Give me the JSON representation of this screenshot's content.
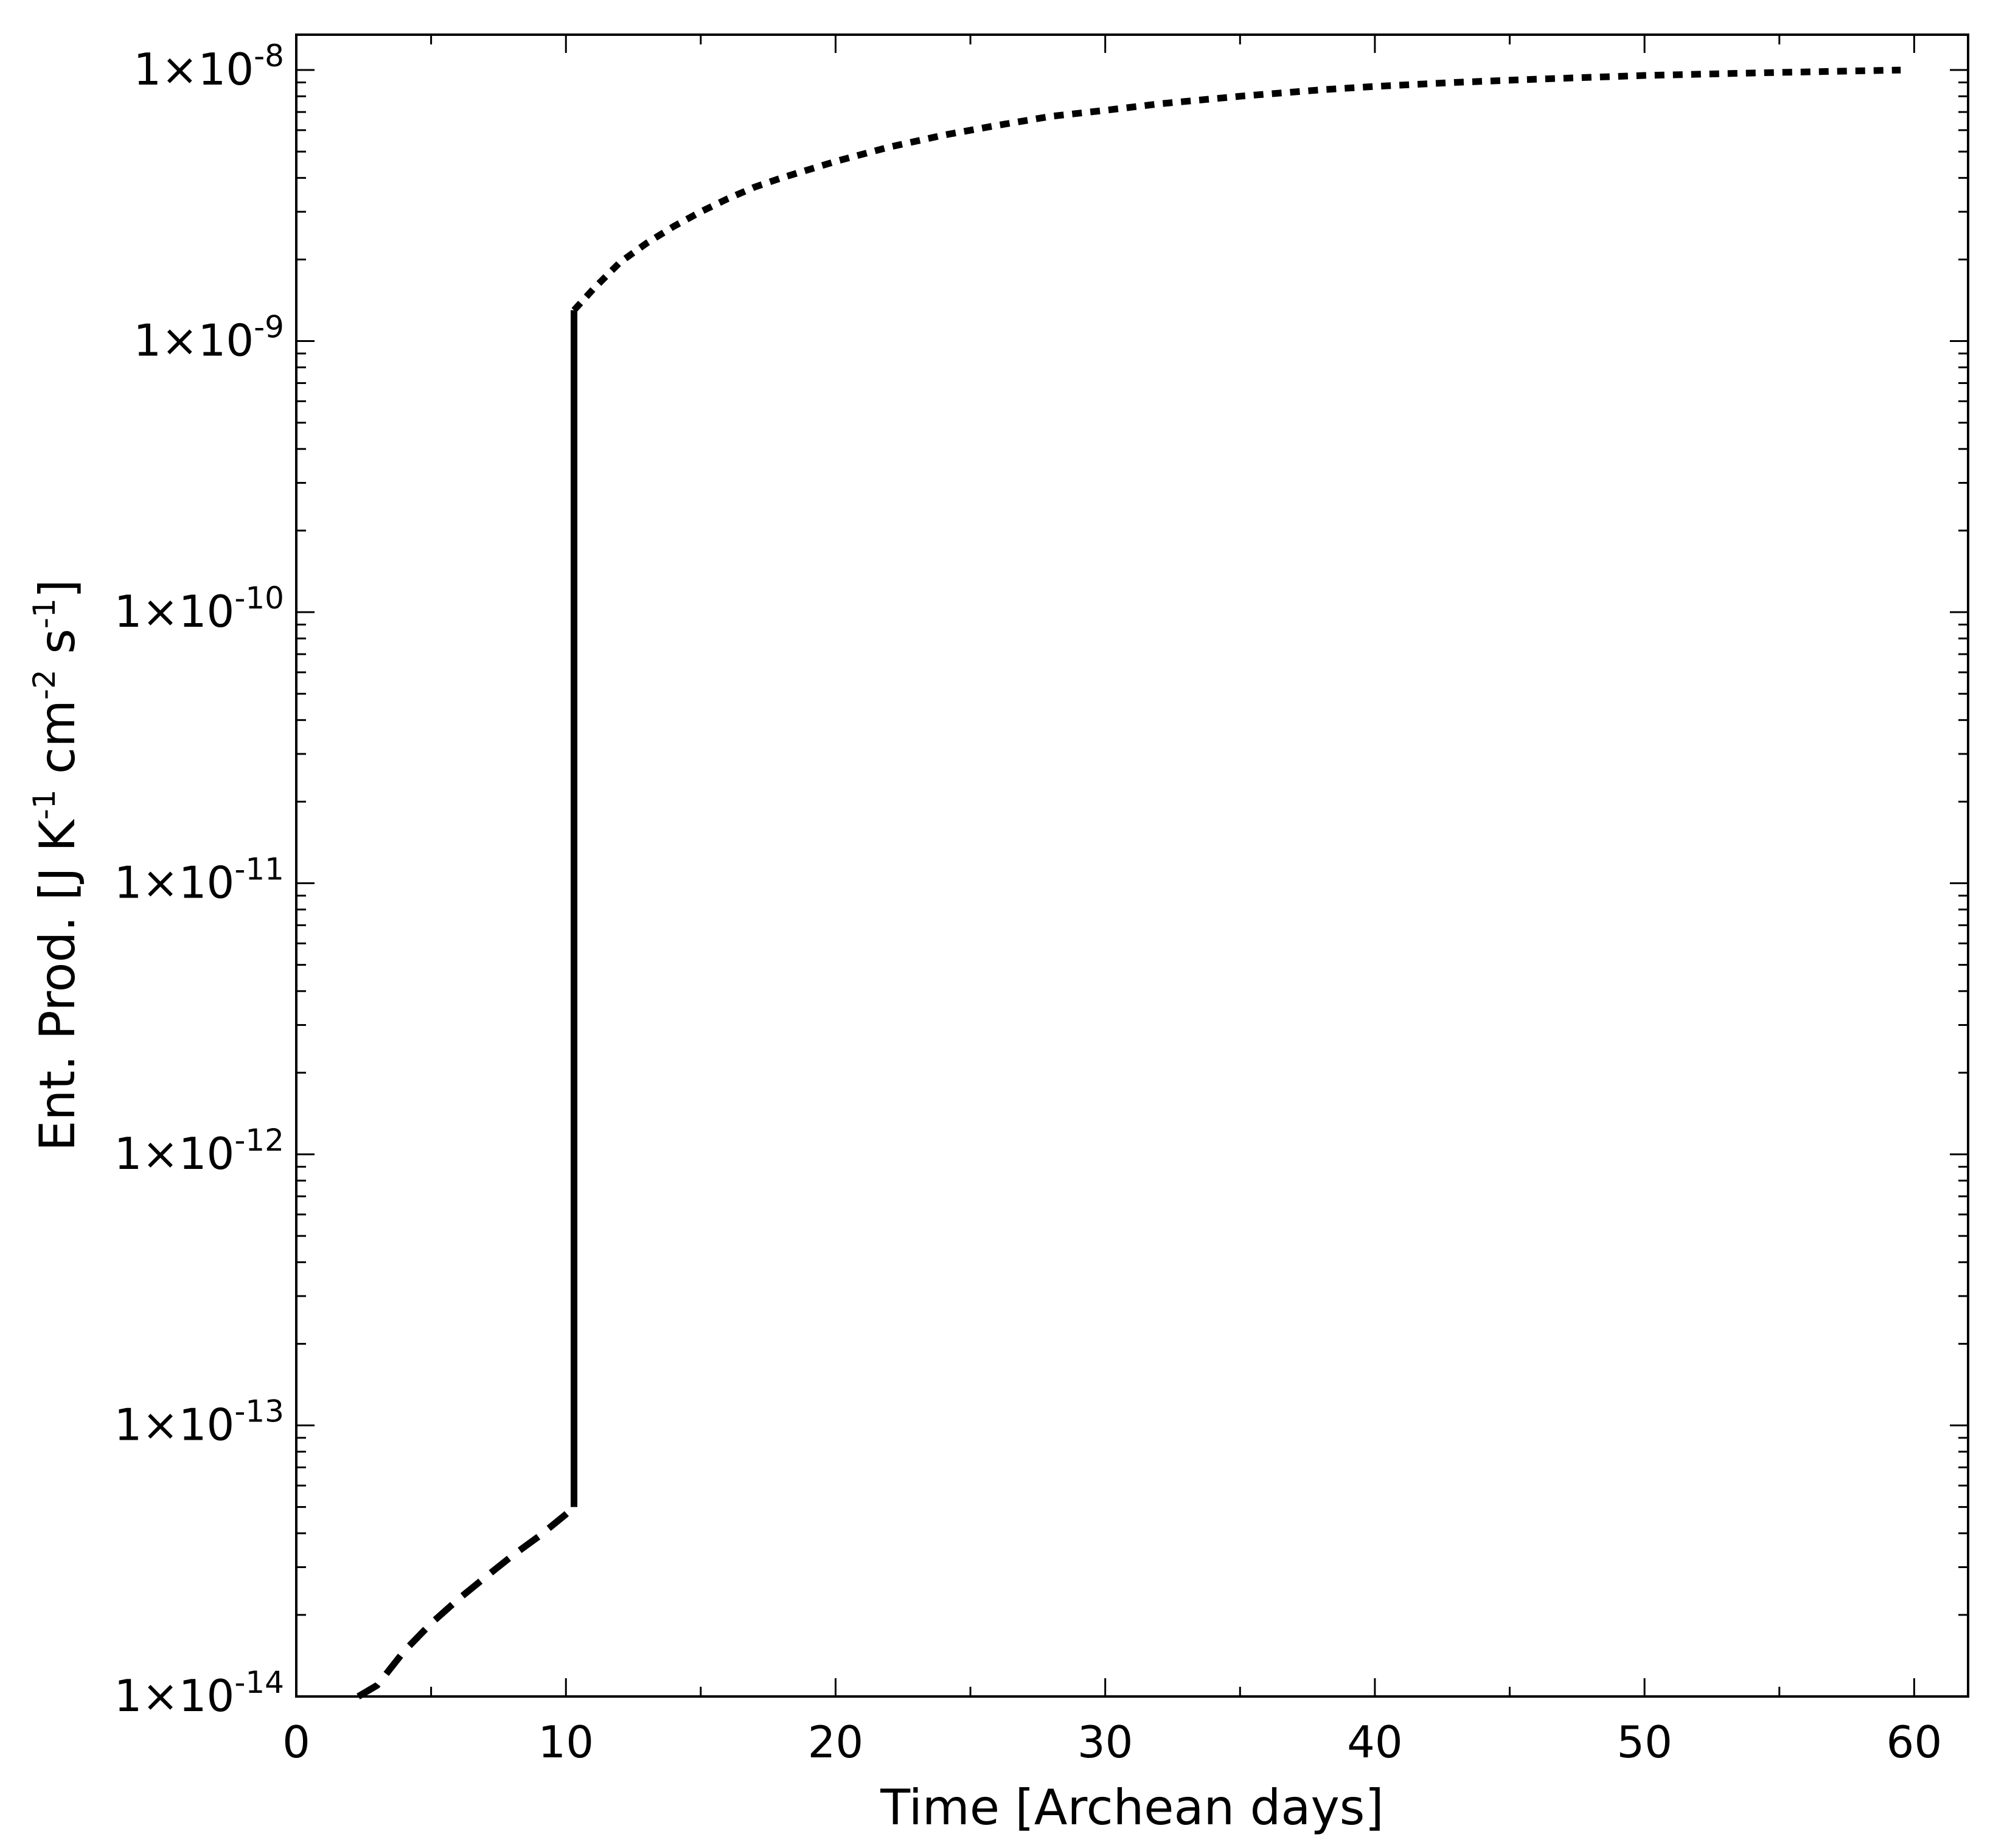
{
  "chart_data": {
    "type": "line",
    "title": "",
    "xlabel": "Time [Archean days]",
    "ylabel": {
      "parts": [
        {
          "text": "Ent. Prod. [J K"
        },
        {
          "text": "-1",
          "sup": true
        },
        {
          "text": " cm"
        },
        {
          "text": "-2",
          "sup": true
        },
        {
          "text": " s"
        },
        {
          "text": "-1",
          "sup": true
        },
        {
          "text": "]"
        }
      ]
    },
    "xlim": [
      0,
      62
    ],
    "ylim": [
      1e-14,
      1.35e-08
    ],
    "yscale": "log",
    "grid": false,
    "x_ticks": [
      {
        "value": 0,
        "label": "0"
      },
      {
        "value": 10,
        "label": "10"
      },
      {
        "value": 20,
        "label": "20"
      },
      {
        "value": 30,
        "label": "30"
      },
      {
        "value": 40,
        "label": "40"
      },
      {
        "value": 50,
        "label": "50"
      },
      {
        "value": 60,
        "label": "60"
      }
    ],
    "y_ticks": [
      {
        "value": 1e-14,
        "base": "1×10",
        "exp": "-14"
      },
      {
        "value": 1e-13,
        "base": "1×10",
        "exp": "-13"
      },
      {
        "value": 1e-12,
        "base": "1×10",
        "exp": "-12"
      },
      {
        "value": 1e-11,
        "base": "1×10",
        "exp": "-11"
      },
      {
        "value": 1e-10,
        "base": "1×10",
        "exp": "-10"
      },
      {
        "value": 1e-09,
        "base": "1×10",
        "exp": "-9"
      },
      {
        "value": 1e-08,
        "base": "1×10",
        "exp": "-8"
      }
    ],
    "series": [
      {
        "style": "dashed",
        "color": "#000000",
        "x": [
          2.3,
          3.0,
          4.0,
          5.0,
          6.0,
          7.0,
          8.0,
          9.0,
          10.0,
          10.3
        ],
        "y": [
          1e-14,
          1.1e-14,
          1.47e-14,
          1.86e-14,
          2.28e-14,
          2.75e-14,
          3.3e-14,
          3.9e-14,
          4.7e-14,
          5e-14
        ]
      },
      {
        "style": "solid",
        "color": "#000000",
        "x": [
          10.3,
          10.3
        ],
        "y": [
          5e-14,
          1.3e-09
        ]
      },
      {
        "style": "dotted",
        "color": "#000000",
        "x": [
          10.3,
          11,
          12,
          13,
          14,
          15,
          16,
          17,
          18,
          20,
          22,
          24,
          26,
          28,
          30,
          32,
          35,
          38,
          40,
          43,
          46,
          50,
          55,
          59.5
        ],
        "y": [
          1.3e-09,
          1.55e-09,
          1.95e-09,
          2.3e-09,
          2.65e-09,
          3e-09,
          3.35e-09,
          3.7e-09,
          4e-09,
          4.6e-09,
          5.2e-09,
          5.75e-09,
          6.25e-09,
          6.75e-09,
          7.1e-09,
          7.5e-09,
          8e-09,
          8.45e-09,
          8.7e-09,
          9e-09,
          9.25e-09,
          9.55e-09,
          9.8e-09,
          1e-08
        ]
      }
    ]
  }
}
